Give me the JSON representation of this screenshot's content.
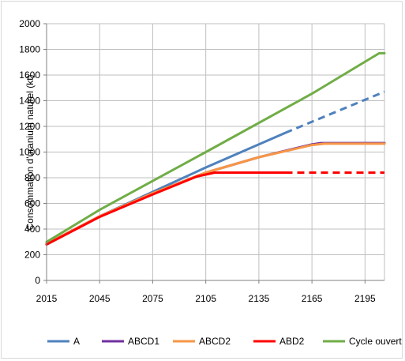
{
  "chart_data": {
    "type": "line",
    "title": "",
    "xlabel": "",
    "ylabel": "Consommation d'uranium naturel (kt)",
    "xlim": [
      2015,
      2206
    ],
    "ylim": [
      0,
      2000
    ],
    "x_ticks": [
      "2015",
      "2045",
      "2075",
      "2105",
      "2135",
      "2165",
      "2195"
    ],
    "y_ticks": [
      "0",
      "200",
      "400",
      "600",
      "800",
      "1000",
      "1200",
      "1400",
      "1600",
      "1800",
      "2000"
    ],
    "grid": true,
    "legend_position": "bottom",
    "series": [
      {
        "name": "A",
        "color": "#4f81bd",
        "solid": [
          [
            2015,
            285
          ],
          [
            2045,
            500
          ],
          [
            2075,
            690
          ],
          [
            2105,
            880
          ],
          [
            2135,
            1060
          ],
          [
            2150,
            1150
          ]
        ],
        "dashed": [
          [
            2150,
            1150
          ],
          [
            2206,
            1470
          ]
        ]
      },
      {
        "name": "ABCD1",
        "color": "#7030a0",
        "solid": [
          [
            2015,
            285
          ],
          [
            2045,
            500
          ],
          [
            2075,
            680
          ],
          [
            2105,
            840
          ],
          [
            2135,
            960
          ],
          [
            2165,
            1060
          ],
          [
            2170,
            1070
          ],
          [
            2206,
            1070
          ]
        ],
        "dashed": []
      },
      {
        "name": "ABCD2",
        "color": "#f79646",
        "solid": [
          [
            2015,
            285
          ],
          [
            2045,
            500
          ],
          [
            2075,
            680
          ],
          [
            2105,
            840
          ],
          [
            2135,
            960
          ],
          [
            2165,
            1055
          ],
          [
            2172,
            1065
          ],
          [
            2206,
            1065
          ]
        ],
        "dashed": []
      },
      {
        "name": "ABD2",
        "color": "#ff0000",
        "solid": [
          [
            2015,
            280
          ],
          [
            2045,
            495
          ],
          [
            2075,
            670
          ],
          [
            2100,
            810
          ],
          [
            2110,
            840
          ],
          [
            2150,
            840
          ]
        ],
        "dashed": [
          [
            2150,
            840
          ],
          [
            2206,
            840
          ]
        ]
      },
      {
        "name": "Cycle ouvert",
        "color": "#70ad47",
        "solid": [
          [
            2015,
            300
          ],
          [
            2045,
            550
          ],
          [
            2105,
            1000
          ],
          [
            2165,
            1455
          ],
          [
            2203,
            1770
          ],
          [
            2206,
            1770
          ]
        ],
        "dashed": []
      }
    ]
  }
}
